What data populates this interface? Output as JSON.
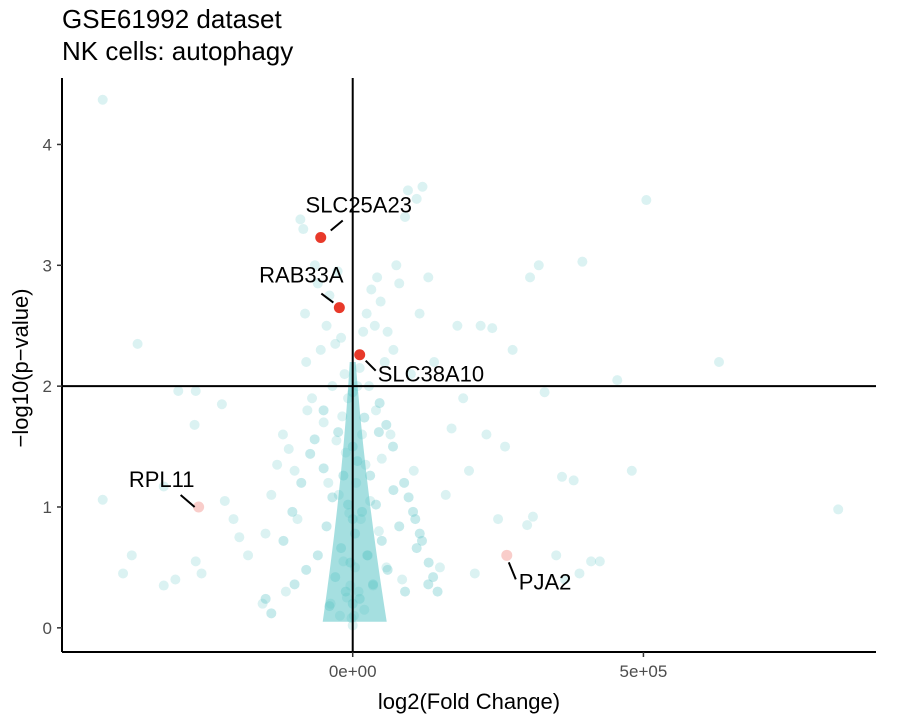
{
  "chart_data": {
    "type": "scatter",
    "title": "GSE61992 dataset",
    "subtitle": "NK cells: autophagy",
    "xlabel": "log2(Fold Change)",
    "ylabel": "−log10(p−value)",
    "xlim": [
      -500000,
      900000
    ],
    "ylim": [
      -0.2,
      4.55
    ],
    "x_ticks": [
      0,
      500000
    ],
    "x_tick_labels": [
      "0e+00",
      "5e+05"
    ],
    "y_ticks": [
      0,
      1,
      2,
      3,
      4
    ],
    "y_tick_labels": [
      "0",
      "1",
      "2",
      "3",
      "4"
    ],
    "threshold_lines": {
      "x": 0,
      "y": 2
    },
    "grid": false,
    "colors": {
      "background_points": "#5bc4c6",
      "highlight": "#e8392a"
    },
    "highlighted_points": [
      {
        "label": "SLC25A23",
        "x": -55000,
        "y": 3.23,
        "color": "#e8392a",
        "opacity": 1
      },
      {
        "label": "RAB33A",
        "x": -23000,
        "y": 2.65,
        "color": "#e8392a",
        "opacity": 1
      },
      {
        "label": "SLC38A10",
        "x": 12000,
        "y": 2.26,
        "color": "#e8392a",
        "opacity": 1
      },
      {
        "label": "RPL11",
        "x": -265000,
        "y": 1.0,
        "color": "#e8392a",
        "opacity": 0.25
      },
      {
        "label": "PJA2",
        "x": 265000,
        "y": 0.6,
        "color": "#e8392a",
        "opacity": 0.25
      }
    ],
    "highlight_labels": [
      "SLC25A23",
      "RAB33A",
      "SLC38A10",
      "RPL11",
      "PJA2"
    ],
    "background_points": [
      [
        -430000,
        4.37
      ],
      [
        -430000,
        1.06
      ],
      [
        -370000,
        2.35
      ],
      [
        -325000,
        1.17
      ],
      [
        -395000,
        0.45
      ],
      [
        -380000,
        0.6
      ],
      [
        -325000,
        0.35
      ],
      [
        -305000,
        0.4
      ],
      [
        -300000,
        1.96
      ],
      [
        -270000,
        1.96
      ],
      [
        -272000,
        1.68
      ],
      [
        -270000,
        0.55
      ],
      [
        -260000,
        0.45
      ],
      [
        -225000,
        1.85
      ],
      [
        -220000,
        1.05
      ],
      [
        -205000,
        0.9
      ],
      [
        -195000,
        0.75
      ],
      [
        -180000,
        0.6
      ],
      [
        -155000,
        0.2
      ],
      [
        -150000,
        0.78
      ],
      [
        -140000,
        1.1
      ],
      [
        -130000,
        1.35
      ],
      [
        -120000,
        1.6
      ],
      [
        -115000,
        0.3
      ],
      [
        -110000,
        1.48
      ],
      [
        -100000,
        1.3
      ],
      [
        -95000,
        0.9
      ],
      [
        -90000,
        3.38
      ],
      [
        -85000,
        3.3
      ],
      [
        -82000,
        2.6
      ],
      [
        -80000,
        2.2
      ],
      [
        -78000,
        1.8
      ],
      [
        -70000,
        1.9
      ],
      [
        -65000,
        3.0
      ],
      [
        -60000,
        2.85
      ],
      [
        -55000,
        2.3
      ],
      [
        -50000,
        1.7
      ],
      [
        -45000,
        2.5
      ],
      [
        -42000,
        1.2
      ],
      [
        -40000,
        2.75
      ],
      [
        -38000,
        0.2
      ],
      [
        -35000,
        2.0
      ],
      [
        -30000,
        2.35
      ],
      [
        -28000,
        1.55
      ],
      [
        -26000,
        2.95
      ],
      [
        -24000,
        1.1
      ],
      [
        -22000,
        0.1
      ],
      [
        -20000,
        2.4
      ],
      [
        -18000,
        1.75
      ],
      [
        -16000,
        0.55
      ],
      [
        -14000,
        2.1
      ],
      [
        -12000,
        1.45
      ],
      [
        -10000,
        0.25
      ],
      [
        -8000,
        1.9
      ],
      [
        -6000,
        0.95
      ],
      [
        -4000,
        0.35
      ],
      [
        -2000,
        0.08
      ],
      [
        0,
        0.02
      ],
      [
        2000,
        0.1
      ],
      [
        4000,
        0.5
      ],
      [
        6000,
        1.2
      ],
      [
        8000,
        2.0
      ],
      [
        10000,
        0.3
      ],
      [
        12000,
        2.15
      ],
      [
        14000,
        0.9
      ],
      [
        16000,
        1.6
      ],
      [
        18000,
        2.45
      ],
      [
        20000,
        0.15
      ],
      [
        22000,
        1.35
      ],
      [
        24000,
        2.6
      ],
      [
        26000,
        0.6
      ],
      [
        28000,
        2.0
      ],
      [
        30000,
        1.05
      ],
      [
        32000,
        2.8
      ],
      [
        35000,
        0.35
      ],
      [
        38000,
        2.5
      ],
      [
        40000,
        1.8
      ],
      [
        42000,
        2.9
      ],
      [
        45000,
        0.8
      ],
      [
        48000,
        2.7
      ],
      [
        50000,
        1.4
      ],
      [
        55000,
        2.2
      ],
      [
        58000,
        0.5
      ],
      [
        60000,
        2.45
      ],
      [
        65000,
        1.6
      ],
      [
        70000,
        2.3
      ],
      [
        75000,
        3.0
      ],
      [
        80000,
        2.85
      ],
      [
        85000,
        0.4
      ],
      [
        90000,
        3.4
      ],
      [
        95000,
        3.62
      ],
      [
        100000,
        2.1
      ],
      [
        105000,
        1.3
      ],
      [
        110000,
        3.55
      ],
      [
        115000,
        2.6
      ],
      [
        120000,
        3.65
      ],
      [
        130000,
        2.9
      ],
      [
        140000,
        2.2
      ],
      [
        150000,
        0.5
      ],
      [
        160000,
        1.1
      ],
      [
        170000,
        1.65
      ],
      [
        180000,
        2.5
      ],
      [
        190000,
        1.9
      ],
      [
        200000,
        1.3
      ],
      [
        210000,
        0.45
      ],
      [
        220000,
        2.5
      ],
      [
        230000,
        1.6
      ],
      [
        240000,
        2.48
      ],
      [
        250000,
        0.9
      ],
      [
        262000,
        1.5
      ],
      [
        275000,
        2.3
      ],
      [
        300000,
        0.85
      ],
      [
        305000,
        2.9
      ],
      [
        310000,
        0.92
      ],
      [
        320000,
        3.0
      ],
      [
        330000,
        1.95
      ],
      [
        350000,
        0.6
      ],
      [
        360000,
        1.25
      ],
      [
        365000,
        0.4
      ],
      [
        380000,
        1.22
      ],
      [
        390000,
        0.45
      ],
      [
        395000,
        3.03
      ],
      [
        410000,
        0.55
      ],
      [
        425000,
        0.55
      ],
      [
        455000,
        2.05
      ],
      [
        480000,
        1.3
      ],
      [
        505000,
        3.54
      ],
      [
        630000,
        2.2
      ],
      [
        835000,
        0.98
      ]
    ],
    "density_cloud": [
      [
        -160000,
        0.24
      ],
      [
        -150000,
        1.44
      ],
      [
        -140000,
        0.12
      ],
      [
        -130000,
        0.72
      ],
      [
        -120000,
        1.8
      ],
      [
        -110000,
        0.96
      ],
      [
        -100000,
        0.36
      ],
      [
        -90000,
        1.2
      ],
      [
        -80000,
        0.48
      ],
      [
        -70000,
        1.56
      ],
      [
        -60000,
        0.6
      ],
      [
        -50000,
        1.32
      ],
      [
        -45000,
        0.84
      ],
      [
        -40000,
        0.18
      ],
      [
        -35000,
        1.08
      ],
      [
        -30000,
        0.42
      ],
      [
        -25000,
        1.62
      ],
      [
        -20000,
        0.66
      ],
      [
        -16000,
        1.26
      ],
      [
        -12000,
        0.3
      ],
      [
        -8000,
        1.02
      ],
      [
        -4000,
        0.54
      ],
      [
        0,
        0.2
      ],
      [
        0,
        0.9
      ],
      [
        0,
        1.5
      ],
      [
        0,
        1.95
      ],
      [
        4000,
        0.78
      ],
      [
        8000,
        1.38
      ],
      [
        12000,
        0.24
      ],
      [
        16000,
        0.96
      ],
      [
        20000,
        1.74
      ],
      [
        25000,
        0.6
      ],
      [
        30000,
        1.26
      ],
      [
        35000,
        0.36
      ],
      [
        40000,
        1.02
      ],
      [
        45000,
        1.62
      ],
      [
        50000,
        0.72
      ],
      [
        60000,
        0.48
      ],
      [
        70000,
        1.14
      ],
      [
        80000,
        0.84
      ],
      [
        90000,
        0.3
      ],
      [
        100000,
        1.5
      ],
      [
        110000,
        0.66
      ],
      [
        120000,
        1.08
      ],
      [
        130000,
        0.36
      ],
      [
        140000,
        0.9
      ],
      [
        150000,
        1.68
      ],
      [
        160000,
        0.54
      ],
      [
        170000,
        1.2
      ],
      [
        180000,
        0.42
      ],
      [
        190000,
        0.78
      ],
      [
        200000,
        0.96
      ],
      [
        210000,
        1.86
      ],
      [
        220000,
        0.3
      ],
      [
        230000,
        0.72
      ]
    ]
  }
}
